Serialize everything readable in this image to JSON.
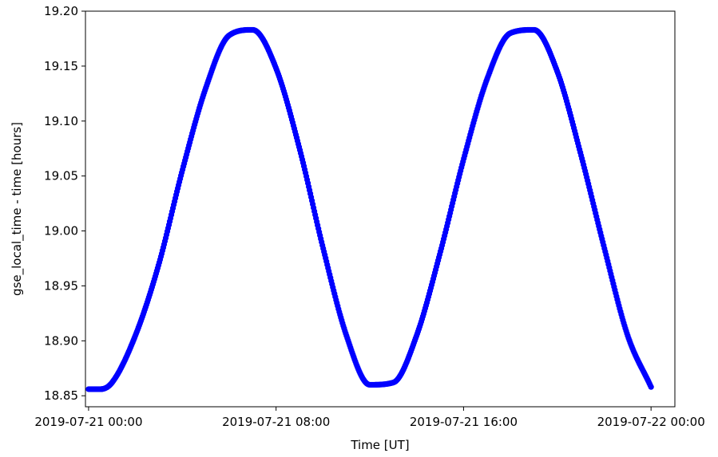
{
  "chart_data": {
    "type": "scatter",
    "title": "",
    "xlabel": "Time [UT]",
    "ylabel": "gse_local_time - time [hours]",
    "x_tick_labels": [
      "2019-07-21 00:00",
      "2019-07-21 08:00",
      "2019-07-21 16:00",
      "2019-07-22 00:00"
    ],
    "y_tick_labels": [
      "18.85",
      "18.90",
      "18.95",
      "19.00",
      "19.05",
      "19.10",
      "19.15",
      "19.20"
    ],
    "xlim": [
      "2019-07-20 23:52",
      "2019-07-22 01:01"
    ],
    "ylim": [
      18.84,
      19.2
    ],
    "grid": false,
    "legend": "none",
    "series": [
      {
        "color": "#0000ff",
        "marker": "dot",
        "x": [
          "2019-07-21 00:00",
          "2019-07-21 00:30",
          "2019-07-21 01:00",
          "2019-07-21 02:00",
          "2019-07-21 03:00",
          "2019-07-21 04:00",
          "2019-07-21 05:00",
          "2019-07-21 06:00",
          "2019-07-21 07:00",
          "2019-07-21 08:00",
          "2019-07-21 09:00",
          "2019-07-21 10:00",
          "2019-07-21 11:00",
          "2019-07-21 12:00",
          "2019-07-21 13:00",
          "2019-07-21 14:00",
          "2019-07-21 15:00",
          "2019-07-21 16:00",
          "2019-07-21 17:00",
          "2019-07-21 18:00",
          "2019-07-21 19:00",
          "2019-07-21 20:00",
          "2019-07-21 21:00",
          "2019-07-21 22:00",
          "2019-07-21 23:00",
          "2019-07-22 00:00"
        ],
        "y": [
          18.856,
          18.856,
          18.862,
          18.905,
          18.97,
          19.055,
          19.13,
          19.178,
          19.183,
          19.148,
          19.075,
          18.985,
          18.905,
          18.86,
          18.862,
          18.905,
          18.98,
          19.065,
          19.138,
          19.18,
          19.183,
          19.145,
          19.07,
          18.985,
          18.905,
          18.858
        ]
      }
    ]
  }
}
